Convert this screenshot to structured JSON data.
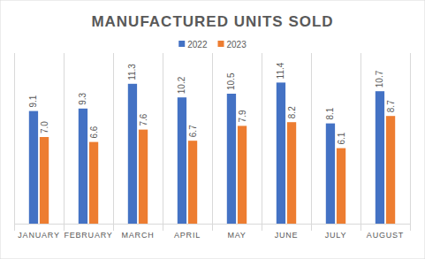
{
  "chart_data": {
    "type": "bar",
    "title": "MANUFACTURED UNITS SOLD",
    "categories": [
      "JANUARY",
      "FEBRUARY",
      "MARCH",
      "APRIL",
      "MAY",
      "JUNE",
      "JULY",
      "AUGUST"
    ],
    "series": [
      {
        "name": "2022",
        "color": "#4472c4",
        "values": [
          9.1,
          9.3,
          11.3,
          10.2,
          10.5,
          11.4,
          8.1,
          10.7
        ],
        "value_labels": [
          "9.1",
          "9.3",
          "11.3",
          "10.2",
          "10.5",
          "11.4",
          "8.1",
          "10.7"
        ]
      },
      {
        "name": "2023",
        "color": "#ed7d31",
        "values": [
          7.0,
          6.6,
          7.6,
          6.7,
          7.9,
          8.2,
          6.1,
          8.7
        ],
        "value_labels": [
          "7.0",
          "6.6",
          "7.6",
          "6.7",
          "7.9",
          "8.2",
          "6.1",
          "8.7"
        ]
      }
    ],
    "ylim": [
      0,
      12
    ],
    "yticks": [
      0,
      2,
      4,
      6,
      8,
      10,
      12
    ],
    "grid": false,
    "legend": "top",
    "data_labels": true,
    "tick_labels": "x"
  }
}
